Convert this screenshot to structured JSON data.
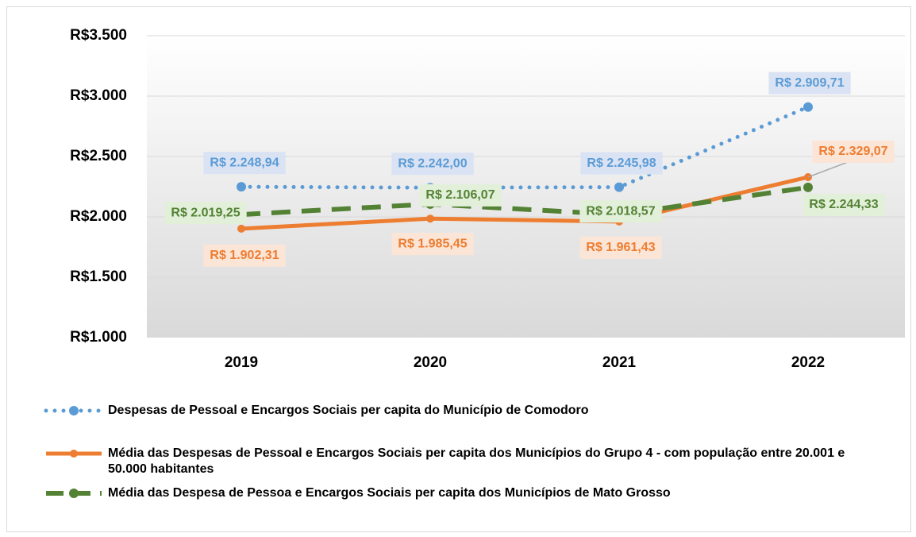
{
  "chart_data": {
    "type": "line",
    "categories": [
      "2019",
      "2020",
      "2021",
      "2022"
    ],
    "ylim": [
      1000,
      3500
    ],
    "yticks": [
      {
        "value": 1000,
        "label": "R$1.000"
      },
      {
        "value": 1500,
        "label": "R$1.500"
      },
      {
        "value": 2000,
        "label": "R$2.000"
      },
      {
        "value": 2500,
        "label": "R$2.500"
      },
      {
        "value": 3000,
        "label": "R$3.000"
      },
      {
        "value": 3500,
        "label": "R$3.500"
      }
    ],
    "grid": true,
    "legend": "bottom",
    "series": [
      {
        "name": "Despesas de Pessoal e Encargos Sociais  per capita do Município de Comodoro",
        "color": "#5b9bd5",
        "label_background": "#dae3f3",
        "line_style": "dotted",
        "values": [
          2248.94,
          2242.0,
          2245.98,
          2909.71
        ],
        "value_labels": [
          "R$ 2.248,94",
          "R$ 2.242,00",
          "R$ 2.245,98",
          "R$ 2.909,71"
        ]
      },
      {
        "name": "Média das Despesas de Pessoal e Encargos Sociais  per capita dos Municípios do Grupo 4 - com população entre 20.001 e 50.000 habitantes",
        "color": "#ed7d31",
        "label_background": "#fbe5d6",
        "line_style": "solid",
        "values": [
          1902.31,
          1985.45,
          1961.43,
          2329.07
        ],
        "value_labels": [
          "R$ 1.902,31",
          "R$ 1.985,45",
          "R$ 1.961,43",
          "R$ 2.329,07"
        ]
      },
      {
        "name": "Média das Despesa de Pessoa e Encargos Sociais per capita dos Municípios de Mato Grosso",
        "color": "#548235",
        "label_background": "#e2f0d9",
        "line_style": "dashed",
        "values": [
          2019.25,
          2106.07,
          2018.57,
          2244.33
        ],
        "value_labels": [
          "R$ 2.019,25",
          "R$ 2.106,07",
          "R$ 2.018,57",
          "R$ 2.244,33"
        ]
      }
    ]
  }
}
